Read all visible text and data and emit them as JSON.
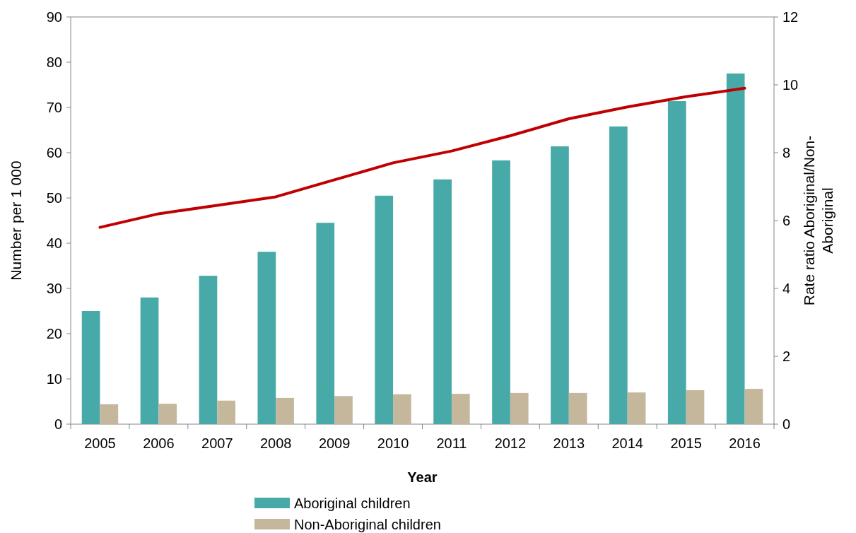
{
  "chart_data": {
    "type": "bar",
    "xlabel": "Year",
    "ylabel": "Number per 1 000",
    "y2label": "Rate ratio Aboriginal/Non-Aboriginal",
    "categories": [
      "2005",
      "2006",
      "2007",
      "2008",
      "2009",
      "2010",
      "2011",
      "2012",
      "2013",
      "2014",
      "2015",
      "2016"
    ],
    "series": [
      {
        "name": "Aboriginal children",
        "color": "#48a9a9",
        "values": [
          25.0,
          28.0,
          32.8,
          38.1,
          44.5,
          50.5,
          54.1,
          58.3,
          61.4,
          65.8,
          71.4,
          77.5
        ]
      },
      {
        "name": "Non-Aboriginal children",
        "color": "#c4b79c",
        "values": [
          4.4,
          4.5,
          5.2,
          5.8,
          6.2,
          6.6,
          6.7,
          6.9,
          6.9,
          7.0,
          7.5,
          7.8
        ]
      },
      {
        "type": "line",
        "axis": "y2",
        "color": "#c00000",
        "values": [
          5.8,
          6.2,
          6.45,
          6.7,
          7.2,
          7.7,
          8.05,
          8.5,
          9.0,
          9.35,
          9.65,
          9.9
        ]
      }
    ],
    "ylim": [
      0,
      90
    ],
    "yticks": [
      0,
      10,
      20,
      30,
      40,
      50,
      60,
      70,
      80,
      90
    ],
    "y2lim": [
      0,
      12
    ],
    "y2ticks": [
      0,
      2,
      4,
      6,
      8,
      10,
      12
    ],
    "grid": false,
    "legend": "bottom",
    "marker": "none",
    "line_style": "solid"
  }
}
